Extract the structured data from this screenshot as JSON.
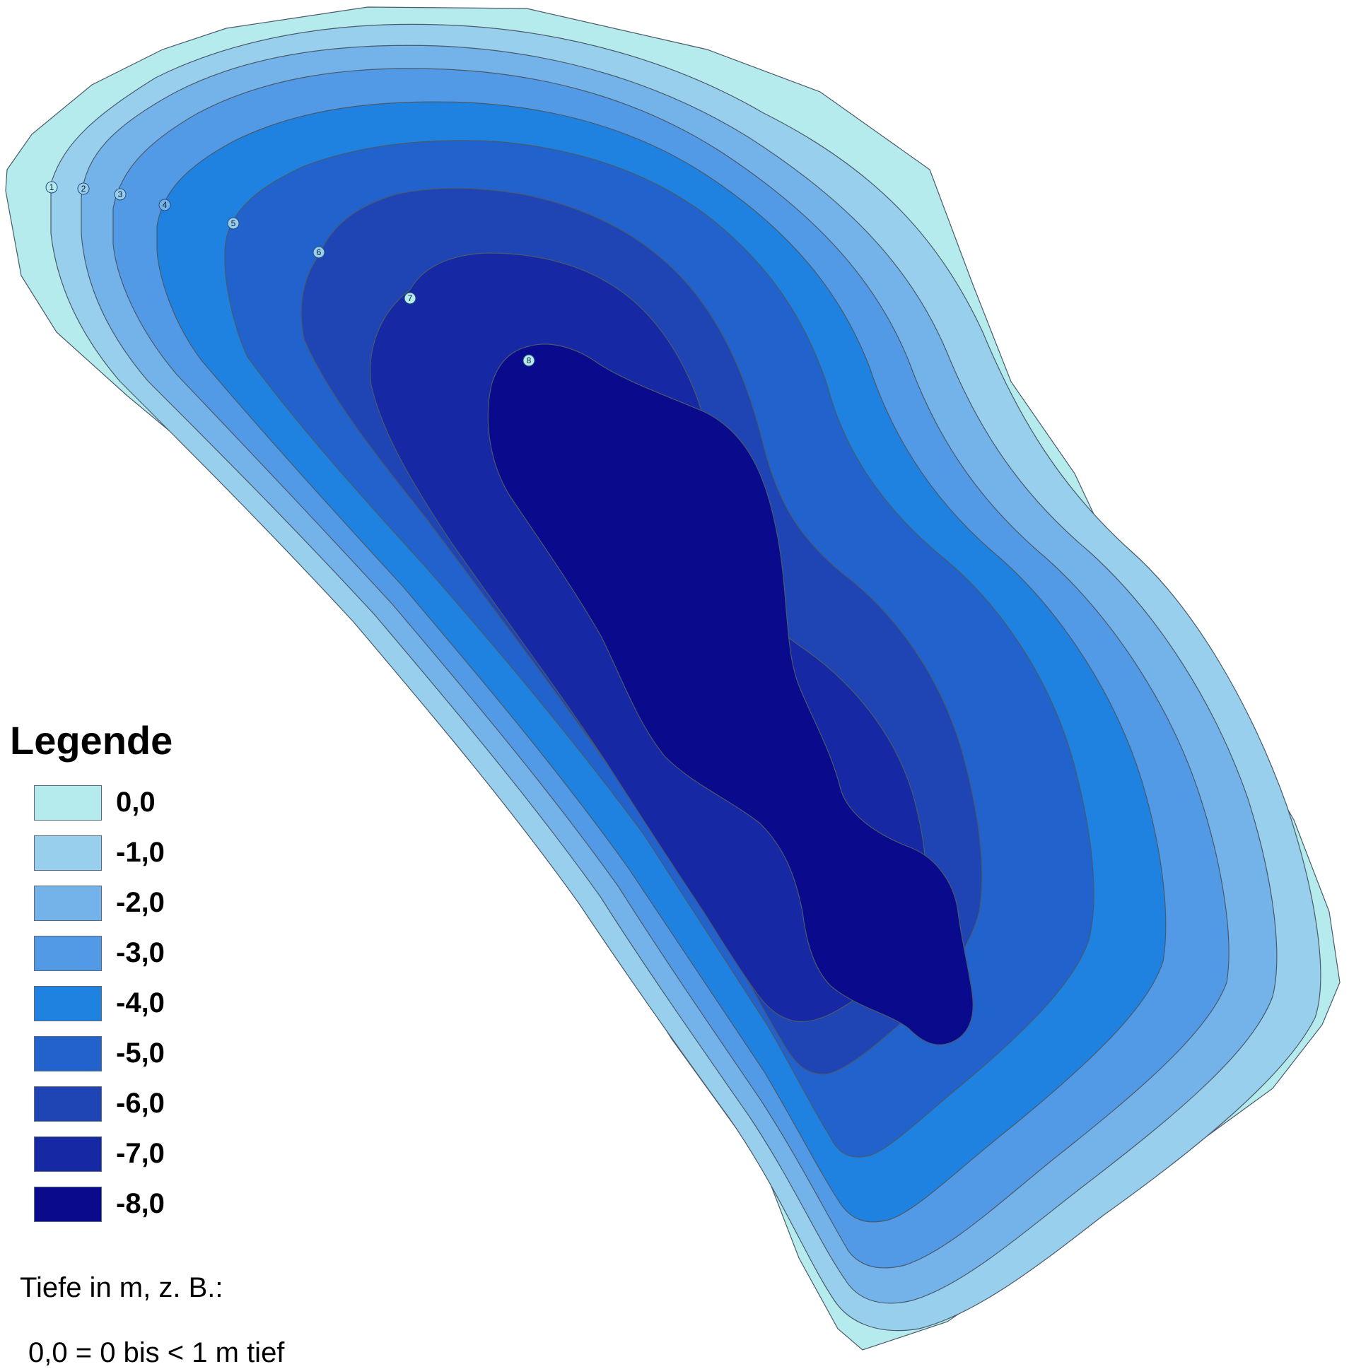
{
  "legend": {
    "title": "Legende",
    "items": [
      {
        "label": "0,0",
        "color": "#b6ebee",
        "depth": 0
      },
      {
        "label": "-1,0",
        "color": "#97cfec",
        "depth": -1
      },
      {
        "label": "-2,0",
        "color": "#74b3e9",
        "depth": -2
      },
      {
        "label": "-3,0",
        "color": "#5299e6",
        "depth": -3
      },
      {
        "label": "-4,0",
        "color": "#1f81e0",
        "depth": -4
      },
      {
        "label": "-5,0",
        "color": "#2262cc",
        "depth": -5
      },
      {
        "label": "-6,0",
        "color": "#1f45b5",
        "depth": -6
      },
      {
        "label": "-7,0",
        "color": "#1628a3",
        "depth": -7
      },
      {
        "label": "-8,0",
        "color": "#0a0a8d",
        "depth": -8
      }
    ]
  },
  "notes": {
    "line1": "Tiefe in m, z. B.:",
    "line2": "0,0 = 0 bis < 1 m tief"
  },
  "depth_markers": [
    {
      "label": "1",
      "color": "#b6ebee"
    },
    {
      "label": "2",
      "color": "#97cfec"
    },
    {
      "label": "3",
      "color": "#97cfec"
    },
    {
      "label": "4",
      "color": "#74b3e9"
    },
    {
      "label": "5",
      "color": "#97cfec"
    },
    {
      "label": "6",
      "color": "#97cfec"
    },
    {
      "label": "7",
      "color": "#b6ebee"
    },
    {
      "label": "8",
      "color": "#b6ebee"
    }
  ]
}
